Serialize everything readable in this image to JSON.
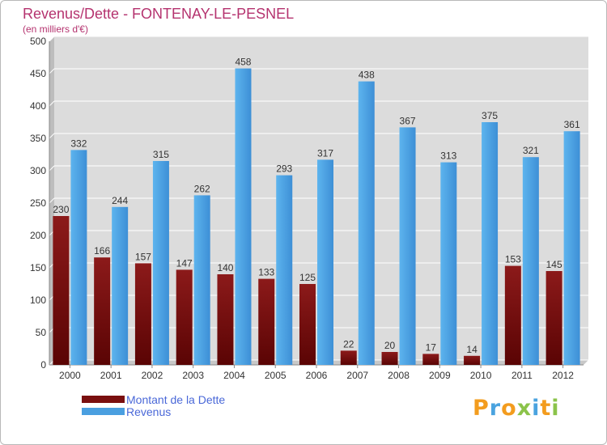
{
  "chart_data": {
    "type": "bar",
    "title": "Revenus/Dette - FONTENAY-LE-PESNEL",
    "subtitle": "(en milliers d'€)",
    "categories": [
      "2000",
      "2001",
      "2002",
      "2003",
      "2004",
      "2005",
      "2006",
      "2007",
      "2008",
      "2009",
      "2010",
      "2011",
      "2012"
    ],
    "series": [
      {
        "name": "Montant de la Dette",
        "color": "#7a0f0f",
        "values": [
          230,
          166,
          157,
          147,
          140,
          133,
          125,
          22,
          20,
          17,
          14,
          153,
          145
        ]
      },
      {
        "name": "Revenus",
        "color": "#4a9fe0",
        "values": [
          332,
          244,
          315,
          262,
          458,
          293,
          317,
          438,
          367,
          313,
          375,
          321,
          361
        ]
      }
    ],
    "ylim": [
      0,
      500
    ],
    "yticks": [
      0,
      50,
      100,
      150,
      200,
      250,
      300,
      350,
      400,
      450,
      500
    ],
    "grid": true,
    "legend_position": "bottom-left"
  },
  "logo": {
    "text": "Proxiti",
    "colors": [
      "#f39c1e",
      "#4aa3df",
      "#f39c1e",
      "#8bc34a",
      "#4aa3df",
      "#f39c1e",
      "#8bc34a"
    ]
  }
}
